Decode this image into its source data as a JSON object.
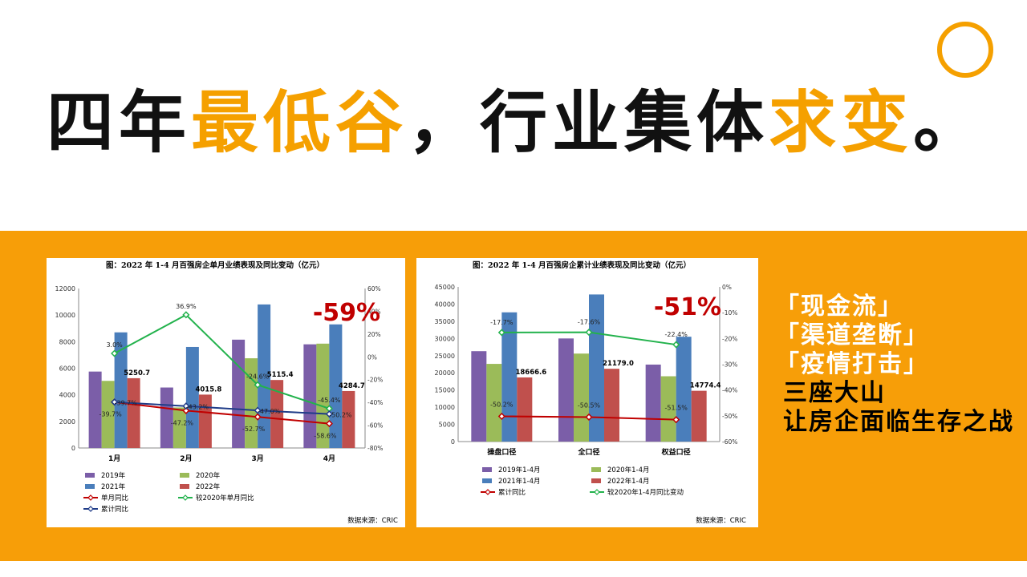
{
  "headline": {
    "parts": [
      {
        "text": "四年",
        "color": "#111111"
      },
      {
        "text": "最低谷",
        "color": "#f5a000"
      },
      {
        "text": "，行业集体",
        "color": "#111111"
      },
      {
        "text": "求变",
        "color": "#f5a000"
      },
      {
        "text": "。",
        "color": "#111111"
      }
    ]
  },
  "colors": {
    "accent": "#f79e08",
    "big_red": "#c00000"
  },
  "sidebar": {
    "items": [
      "「现金流」",
      "「渠道垄断」",
      "「疫情打击」"
    ],
    "line1": "三座大山",
    "line2": "让房企面临生存之战"
  },
  "chart_data": [
    {
      "type": "bar",
      "title": "图：2022 年 1-4 月百强房企单月业绩表现及同比变动（亿元）",
      "categories": [
        "1月",
        "2月",
        "3月",
        "4月"
      ],
      "ylim": [
        0,
        12000
      ],
      "yticks": [
        "0",
        "2000",
        "4000",
        "6000",
        "8000",
        "10000",
        "12000"
      ],
      "y2lim": [
        -80,
        60
      ],
      "y2ticks": [
        "-80%",
        "-60%",
        "-40%",
        "-20%",
        "0%",
        "20%",
        "40%",
        "60%"
      ],
      "series": [
        {
          "name": "2019年",
          "color": "#7b5ea8",
          "values": [
            5750,
            4550,
            8150,
            7800
          ]
        },
        {
          "name": "2020年",
          "color": "#9bbb59",
          "values": [
            5050,
            3050,
            6750,
            7850
          ]
        },
        {
          "name": "2021年",
          "color": "#4a7ebb",
          "values": [
            8700,
            7600,
            10800,
            9300
          ]
        },
        {
          "name": "2022年",
          "color": "#c0504d",
          "values": [
            5250.7,
            4015.8,
            5115.4,
            4284.7
          ]
        }
      ],
      "value_labels": [
        "5250.7",
        "4015.8",
        "5115.4",
        "4284.7"
      ],
      "lines": [
        {
          "name": "单月同比",
          "color": "#c00000",
          "values": [
            -39.7,
            -47.2,
            -52.7,
            -58.6
          ],
          "labels": [
            "-39.7%",
            "-47.2%",
            "-52.7%",
            "-58.6%"
          ]
        },
        {
          "name": "较2020年单月同比",
          "color": "#22b24c",
          "values": [
            3.0,
            36.9,
            -24.6,
            -45.4
          ],
          "labels": [
            "3.0%",
            "36.9%",
            "-24.6%",
            "-45.4%"
          ]
        },
        {
          "name": "累计同比",
          "color": "#1f3c88",
          "values": [
            -39.7,
            -43.2,
            -47.0,
            -50.2
          ],
          "labels": [
            "-39.7%",
            "-43.2%",
            "-47.0%",
            "-50.2%"
          ]
        }
      ],
      "big_label": "-59%",
      "source": "数据来源：CRIC"
    },
    {
      "type": "bar",
      "title": "图：2022 年 1-4 月百强房企累计业绩表现及同比变动（亿元）",
      "categories": [
        "操盘口径",
        "全口径",
        "权益口径"
      ],
      "ylim": [
        0,
        45000
      ],
      "yticks": [
        "0",
        "5000",
        "10000",
        "15000",
        "20000",
        "25000",
        "30000",
        "35000",
        "40000",
        "45000"
      ],
      "y2lim": [
        -60,
        0
      ],
      "y2ticks": [
        "-60%",
        "-50%",
        "-40%",
        "-30%",
        "-20%",
        "-10%",
        "0%"
      ],
      "series": [
        {
          "name": "2019年1-4月",
          "color": "#7b5ea8",
          "values": [
            26300,
            30000,
            22400
          ]
        },
        {
          "name": "2020年1-4月",
          "color": "#9bbb59",
          "values": [
            22600,
            25600,
            19000
          ]
        },
        {
          "name": "2021年1-4月",
          "color": "#4a7ebb",
          "values": [
            37600,
            42800,
            30500
          ]
        },
        {
          "name": "2022年1-4月",
          "color": "#c0504d",
          "values": [
            18666.6,
            21179.0,
            14774.4
          ]
        }
      ],
      "value_labels": [
        "18666.6",
        "21179.0",
        "14774.4"
      ],
      "lines": [
        {
          "name": "累计同比",
          "color": "#c00000",
          "values": [
            -50.2,
            -50.5,
            -51.5
          ],
          "labels": [
            "-50.2%",
            "-50.5%",
            "-51.5%"
          ]
        },
        {
          "name": "较2020年1-4月同比变动",
          "color": "#22b24c",
          "values": [
            -17.7,
            -17.6,
            -22.4
          ],
          "labels": [
            "-17.7%",
            "-17.6%",
            "-22.4%"
          ]
        }
      ],
      "big_label": "-51%",
      "source": "数据来源：CRIC"
    }
  ]
}
